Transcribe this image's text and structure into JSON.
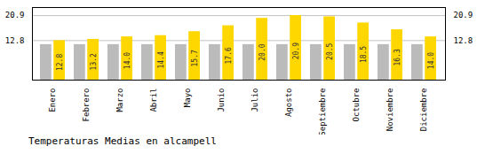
{
  "chart_data": {
    "type": "bar",
    "title": "Temperaturas Medias en alcampell",
    "categories": [
      "Enero",
      "Febrero",
      "Marzo",
      "Abril",
      "Mayo",
      "Junio",
      "Julio",
      "Agosto",
      "Septiembre",
      "Octubre",
      "Noviembre",
      "Diciembre"
    ],
    "series": [
      {
        "color": "#BBBBBB",
        "values": [
          11.5,
          11.5,
          11.5,
          11.5,
          11.5,
          11.5,
          11.5,
          11.5,
          11.5,
          11.5,
          11.5,
          11.5
        ]
      },
      {
        "color": "#FFD700",
        "values": [
          12.8,
          13.2,
          14.0,
          14.4,
          15.7,
          17.6,
          20.0,
          20.9,
          20.5,
          18.5,
          16.3,
          14.0
        ],
        "value_labels": [
          "12.8",
          "13.2",
          "14.0",
          "14.4",
          "15.7",
          "17.6",
          "20.0",
          "20.9",
          "20.5",
          "18.5",
          "16.3",
          "14.0"
        ]
      }
    ],
    "ylim": [
      0,
      23.5
    ],
    "yticks": [
      12.8,
      20.9
    ],
    "grid": true,
    "data_labels": true
  }
}
